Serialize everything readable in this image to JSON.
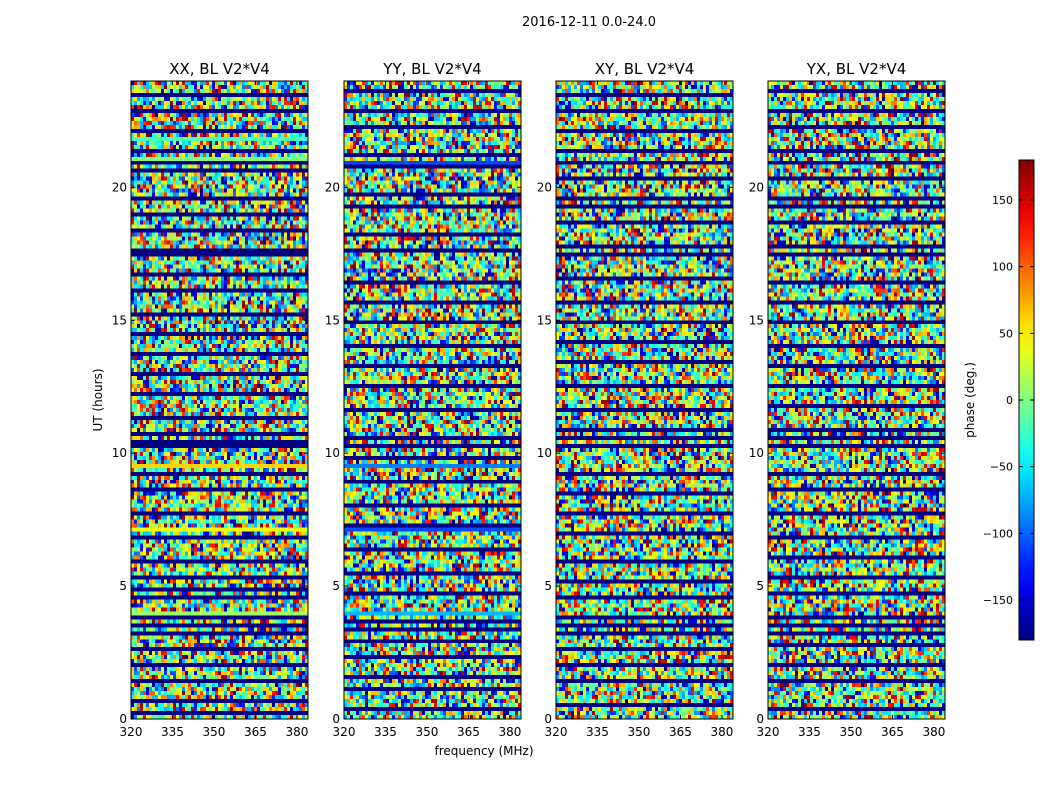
{
  "figure_title": "2016-12-11 0.0-24.0",
  "chart_data": [
    {
      "type": "heatmap",
      "title": "XX, BL V2*V4",
      "xlabel": "",
      "ylabel": "UT (hours)",
      "xlim": [
        320,
        384
      ],
      "ylim": [
        0,
        24
      ],
      "xticks": [
        320,
        335,
        350,
        365,
        380
      ],
      "yticks": [
        0,
        5,
        10,
        15,
        20
      ],
      "z_range": [
        -180,
        180
      ],
      "z_description": "visibility phase (deg.) per time/frequency bin, noise-like; horizontal bands at -180 deg are flagged/missing integrations",
      "flagged_rows_hours": [
        0.3,
        0.7,
        1.5,
        2.0,
        2.6,
        3.2,
        3.5,
        3.8,
        4.6,
        4.9,
        5.4,
        6.0,
        6.9,
        7.8,
        8.6,
        9.3,
        10.3,
        10.5,
        10.8,
        11.4,
        12.2,
        13.0,
        13.7,
        14.5,
        15.3,
        16.1,
        16.8,
        17.5,
        17.7,
        18.4,
        19.0,
        19.6,
        20.6,
        20.9,
        21.3,
        22.2,
        22.9,
        23.5
      ],
      "uniform_rows": [
        {
          "t": 3.9,
          "phase": 55
        },
        {
          "t": 4.05,
          "phase": 10
        },
        {
          "t": 7.1,
          "phase": 40
        },
        {
          "t": 9.6,
          "phase": 60
        },
        {
          "t": 21.1,
          "phase": 0
        },
        {
          "t": 21.8,
          "phase": -20
        }
      ]
    },
    {
      "type": "heatmap",
      "title": "YY, BL V2*V4",
      "xlabel": "frequency (MHz)",
      "ylabel": "",
      "xlim": [
        320,
        384
      ],
      "ylim": [
        0,
        24
      ],
      "xticks": [
        320,
        335,
        350,
        365,
        380
      ],
      "yticks": [
        0,
        5,
        10,
        15,
        20
      ],
      "z_range": [
        -180,
        180
      ],
      "z_description": "visibility phase (deg.), noise-like with flagged horizontal bands",
      "flagged_rows_hours": [
        0.4,
        1.1,
        1.6,
        2.3,
        3.0,
        3.4,
        3.7,
        4.8,
        5.5,
        6.4,
        7.3,
        8.1,
        8.9,
        9.8,
        10.3,
        10.6,
        11.6,
        12.5,
        13.3,
        14.1,
        14.9,
        15.7,
        16.5,
        17.6,
        18.2,
        19.3,
        19.7,
        20.8,
        21.2,
        22.3,
        22.9,
        23.6
      ],
      "uniform_rows": [
        {
          "t": 4.0,
          "phase": -70
        },
        {
          "t": 7.2,
          "phase": -110
        },
        {
          "t": 9.5,
          "phase": -90
        },
        {
          "t": 20.9,
          "phase": 150
        },
        {
          "t": 21.0,
          "phase": -110
        }
      ]
    },
    {
      "type": "heatmap",
      "title": "XY, BL V2*V4",
      "xlabel": "",
      "ylabel": "",
      "xlim": [
        320,
        384
      ],
      "ylim": [
        0,
        24
      ],
      "xticks": [
        320,
        335,
        350,
        365,
        380
      ],
      "yticks": [
        0,
        5,
        10,
        15,
        20
      ],
      "z_range": [
        -180,
        180
      ],
      "z_description": "visibility phase (deg.), noise-like with flagged horizontal bands",
      "flagged_rows_hours": [
        0.5,
        1.5,
        2.0,
        2.7,
        3.3,
        3.6,
        3.9,
        4.6,
        5.2,
        6.0,
        7.0,
        7.8,
        8.5,
        9.3,
        10.3,
        10.6,
        10.9,
        11.7,
        12.6,
        13.4,
        14.2,
        15.0,
        15.7,
        16.6,
        17.5,
        17.8,
        18.6,
        19.3,
        19.6,
        20.4,
        21.0,
        21.4,
        22.2,
        22.9,
        23.5
      ],
      "uniform_rows": []
    },
    {
      "type": "heatmap",
      "title": "YX, BL V2*V4",
      "xlabel": "",
      "ylabel": "",
      "xlim": [
        320,
        384
      ],
      "ylim": [
        0,
        24
      ],
      "xticks": [
        320,
        335,
        350,
        365,
        380
      ],
      "yticks": [
        0,
        5,
        10,
        15,
        20
      ],
      "z_range": [
        -180,
        180
      ],
      "z_description": "visibility phase (deg.), noise-like with flagged horizontal bands",
      "flagged_rows_hours": [
        0.4,
        1.4,
        2.0,
        2.8,
        3.3,
        3.6,
        3.9,
        4.7,
        5.3,
        6.1,
        6.9,
        7.8,
        8.6,
        9.3,
        10.3,
        10.6,
        10.9,
        11.8,
        12.5,
        13.3,
        14.1,
        15.0,
        15.7,
        16.5,
        17.5,
        17.8,
        18.6,
        19.3,
        19.6,
        20.4,
        21.0,
        21.4,
        22.3,
        22.9,
        23.6
      ],
      "uniform_rows": []
    }
  ],
  "colorbar": {
    "label": "phase (deg.)",
    "range": [
      -180,
      180
    ],
    "ticks": [
      150,
      100,
      50,
      0,
      -50,
      -100,
      -150
    ],
    "tick_labels": [
      "150",
      "100",
      "50",
      "0",
      "−50",
      "−100",
      "−150"
    ],
    "colormap": "jet"
  }
}
